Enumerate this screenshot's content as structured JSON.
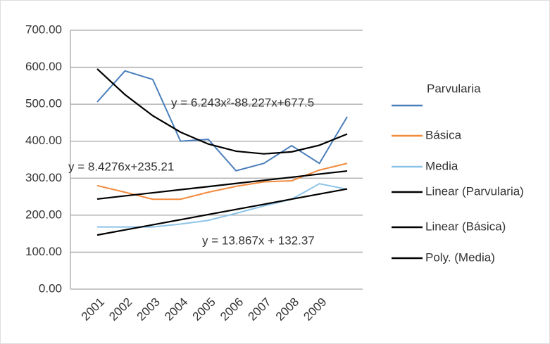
{
  "chart_data": {
    "type": "line",
    "categories": [
      "2001",
      "2002",
      "2003",
      "2004",
      "2005",
      "2006",
      "2007",
      "2008",
      "2009",
      null
    ],
    "series": [
      {
        "name": "Parvularia",
        "color": "#4a7ebb",
        "values": [
          506,
          590,
          567,
          400,
          405,
          320,
          340,
          388,
          340,
          466
        ]
      },
      {
        "name": "Básica",
        "color": "#f28a3c",
        "values": [
          280,
          262,
          243,
          243,
          262,
          278,
          290,
          293,
          322,
          340
        ]
      },
      {
        "name": "Media",
        "color": "#8cc4e8",
        "values": [
          168,
          168,
          168,
          176,
          186,
          205,
          225,
          243,
          285,
          270
        ]
      },
      {
        "name": "Linear (Parvularia)",
        "color": "#000000",
        "values": [
          243.6,
          252.1,
          260.5,
          268.9,
          277.3,
          285.8,
          294.2,
          302.6,
          311.1,
          319.5
        ]
      },
      {
        "name": "Linear (Básica)",
        "color": "#000000",
        "values": [
          146.2,
          160.1,
          174.0,
          187.8,
          201.7,
          215.6,
          229.4,
          243.3,
          257.2,
          271.0
        ]
      },
      {
        "name": "Poly. (Media)",
        "color": "#000000",
        "values": [
          595.5,
          526.0,
          469.0,
          424.5,
          392.4,
          372.9,
          365.8,
          371.2,
          389.1,
          419.5
        ]
      }
    ],
    "annotations": [
      "y = 6.243x²-88.227x+677.5",
      "y = 8.4276x+235.21",
      "y = 13.867x + 132.37"
    ],
    "ylim": [
      0,
      700
    ],
    "yticks": [
      {
        "value": 0,
        "label": "0.00"
      },
      {
        "value": 100,
        "label": "100.00"
      },
      {
        "value": 200,
        "label": "200.00"
      },
      {
        "value": 300,
        "label": "300.00"
      },
      {
        "value": 400,
        "label": "400.00"
      },
      {
        "value": 500,
        "label": "500.00"
      },
      {
        "value": 600,
        "label": "600.00"
      },
      {
        "value": 700,
        "label": "700.00"
      }
    ],
    "grid": true,
    "legend": "right"
  }
}
